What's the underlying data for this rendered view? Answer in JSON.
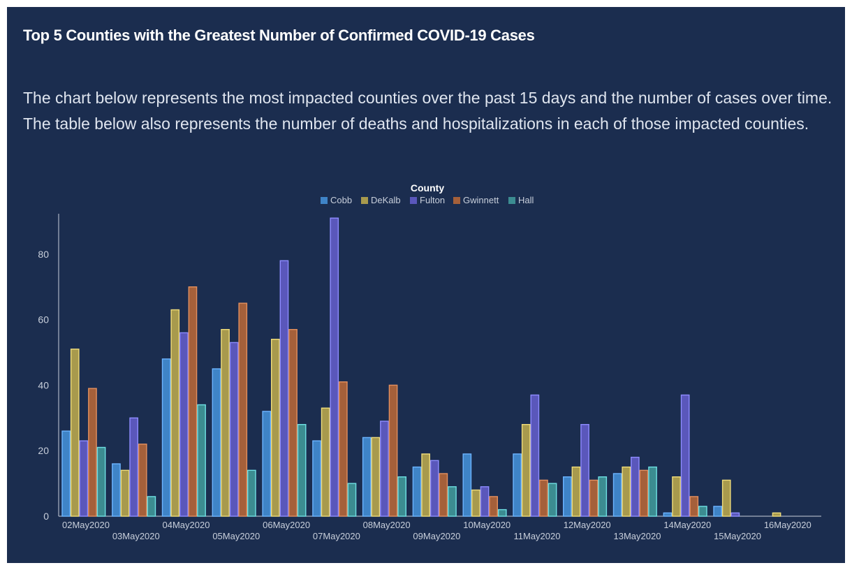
{
  "header": {
    "title": "Top 5 Counties with the Greatest Number of Confirmed COVID-19 Cases",
    "description": "The chart below represents the most impacted counties over the past 15 days and the number of cases over time. The table below also represents the number of deaths and hospitalizations in each of those impacted counties."
  },
  "chart_data": {
    "type": "bar",
    "legend_title": "County",
    "legend_position": "top-center",
    "grid": false,
    "categories": [
      "02May2020",
      "03May2020",
      "04May2020",
      "05May2020",
      "06May2020",
      "07May2020",
      "08May2020",
      "09May2020",
      "10May2020",
      "11May2020",
      "12May2020",
      "13May2020",
      "14May2020",
      "15May2020",
      "16May2020"
    ],
    "ylim": [
      0,
      92
    ],
    "yticks": [
      0,
      20,
      40,
      60,
      80
    ],
    "series": [
      {
        "name": "Cobb",
        "color": "#3f84c7",
        "values": [
          26,
          16,
          48,
          45,
          32,
          23,
          24,
          15,
          19,
          19,
          12,
          13,
          1,
          3,
          0
        ]
      },
      {
        "name": "DeKalb",
        "color": "#a89a4d",
        "values": [
          51,
          14,
          63,
          57,
          54,
          33,
          24,
          19,
          8,
          28,
          15,
          15,
          12,
          11,
          1
        ]
      },
      {
        "name": "Fulton",
        "color": "#5a57bb",
        "values": [
          23,
          30,
          56,
          53,
          78,
          91,
          29,
          17,
          9,
          37,
          28,
          18,
          37,
          1,
          0
        ]
      },
      {
        "name": "Gwinnett",
        "color": "#a5603a",
        "values": [
          39,
          22,
          70,
          65,
          57,
          41,
          40,
          13,
          6,
          11,
          11,
          14,
          6,
          0,
          0
        ]
      },
      {
        "name": "Hall",
        "color": "#3c8c91",
        "values": [
          21,
          6,
          34,
          14,
          28,
          10,
          12,
          9,
          2,
          10,
          12,
          15,
          3,
          0,
          0
        ]
      }
    ],
    "stroke_colors": [
      "#6cb4ff",
      "#f0dc7a",
      "#8e8cff",
      "#e3905f",
      "#6fe0e4"
    ]
  }
}
